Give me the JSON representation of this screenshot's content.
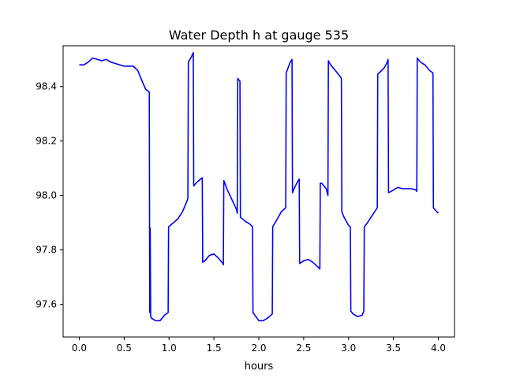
{
  "chart_data": {
    "type": "line",
    "title": "Water Depth h at gauge 535",
    "xlabel": "hours",
    "ylabel": "",
    "xlim": [
      -0.18,
      4.18
    ],
    "ylim": [
      97.48,
      98.55
    ],
    "x_ticks": [
      0.0,
      0.5,
      1.0,
      1.5,
      2.0,
      2.5,
      3.0,
      3.5,
      4.0
    ],
    "x_tick_labels": [
      "0.0",
      "0.5",
      "1.0",
      "1.5",
      "2.0",
      "2.5",
      "3.0",
      "3.5",
      "4.0"
    ],
    "y_ticks": [
      97.6,
      97.8,
      98.0,
      98.2,
      98.4
    ],
    "y_tick_labels": [
      "97.6",
      "97.8",
      "98.0",
      "98.2",
      "98.4"
    ],
    "grid": false,
    "series": [
      {
        "color": "#0000ff",
        "x": [
          0.0,
          0.05,
          0.1,
          0.15,
          0.2,
          0.25,
          0.3,
          0.35,
          0.4,
          0.45,
          0.5,
          0.55,
          0.6,
          0.65,
          0.7,
          0.74,
          0.78,
          0.785,
          0.79,
          0.795,
          0.8,
          0.85,
          0.9,
          0.95,
          0.99,
          0.995,
          1.05,
          1.1,
          1.15,
          1.2,
          1.21,
          1.215,
          1.25,
          1.27,
          1.275,
          1.3,
          1.35,
          1.37,
          1.375,
          1.4,
          1.45,
          1.5,
          1.55,
          1.6,
          1.605,
          1.61,
          1.65,
          1.7,
          1.75,
          1.76,
          1.765,
          1.79,
          1.795,
          1.85,
          1.9,
          1.93,
          1.935,
          2.0,
          2.05,
          2.1,
          2.15,
          2.155,
          2.2,
          2.25,
          2.3,
          2.305,
          2.35,
          2.37,
          2.375,
          2.4,
          2.43,
          2.45,
          2.455,
          2.5,
          2.55,
          2.6,
          2.65,
          2.68,
          2.685,
          2.7,
          2.75,
          2.77,
          2.775,
          2.8,
          2.85,
          2.9,
          2.92,
          2.925,
          2.95,
          3.0,
          3.02,
          3.025,
          3.05,
          3.1,
          3.15,
          3.17,
          3.175,
          3.2,
          3.25,
          3.3,
          3.32,
          3.325,
          3.4,
          3.43,
          3.44,
          3.445,
          3.5,
          3.55,
          3.6,
          3.65,
          3.7,
          3.75,
          3.76,
          3.765,
          3.8,
          3.85,
          3.9,
          3.94,
          3.945,
          3.97,
          4.0
        ],
        "values": [
          98.48,
          98.48,
          98.49,
          98.505,
          98.5,
          98.495,
          98.5,
          98.49,
          98.485,
          98.48,
          98.475,
          98.475,
          98.475,
          98.46,
          98.42,
          98.39,
          98.38,
          97.57,
          97.88,
          97.56,
          97.55,
          97.54,
          97.54,
          97.56,
          97.57,
          97.885,
          97.9,
          97.915,
          97.94,
          97.98,
          97.99,
          98.49,
          98.51,
          98.525,
          98.035,
          98.045,
          98.06,
          98.065,
          97.755,
          97.76,
          97.78,
          97.785,
          97.77,
          97.75,
          97.745,
          98.055,
          98.02,
          97.985,
          97.95,
          97.935,
          98.43,
          98.42,
          97.92,
          97.905,
          97.895,
          97.885,
          97.57,
          97.54,
          97.54,
          97.55,
          97.565,
          97.885,
          97.91,
          97.94,
          97.955,
          98.45,
          98.49,
          98.5,
          98.01,
          98.03,
          98.05,
          98.06,
          97.75,
          97.76,
          97.765,
          97.755,
          97.74,
          97.73,
          98.045,
          98.045,
          98.025,
          98.0,
          98.495,
          98.48,
          98.46,
          98.44,
          98.43,
          97.94,
          97.92,
          97.89,
          97.885,
          97.575,
          97.565,
          97.555,
          97.56,
          97.575,
          97.885,
          97.895,
          97.92,
          97.945,
          97.955,
          98.445,
          98.47,
          98.49,
          98.5,
          98.01,
          98.02,
          98.03,
          98.025,
          98.025,
          98.025,
          98.02,
          98.015,
          98.505,
          98.49,
          98.48,
          98.46,
          98.45,
          97.955,
          97.945,
          97.935
        ]
      }
    ]
  }
}
